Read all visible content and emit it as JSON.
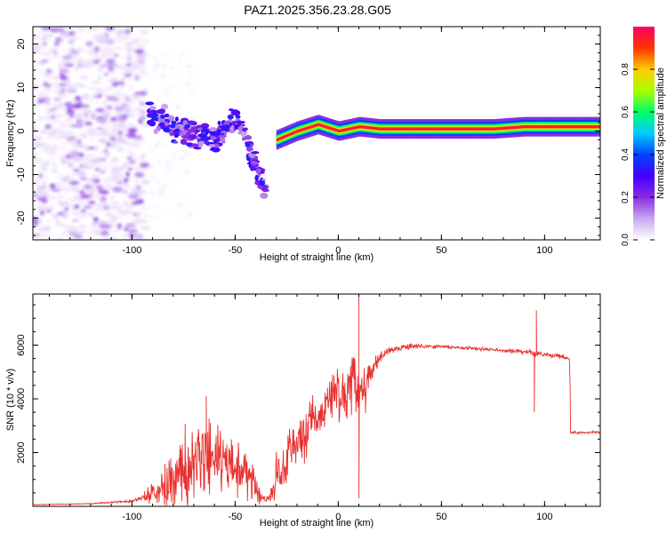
{
  "figure_title": "PAZ1.2025.356.23.28.G05",
  "chart_data": [
    {
      "type": "heatmap",
      "title": "PAZ1.2025.356.23.28.G05",
      "xlabel": "Height of straight line (km)",
      "ylabel": "Frequency (Hz)",
      "xlim": [
        -148,
        127
      ],
      "ylim": [
        -25,
        24
      ],
      "xticks": [
        -100,
        -50,
        0,
        50,
        100
      ],
      "yticks": [
        -20,
        -10,
        0,
        10,
        20
      ],
      "grid": false,
      "colorbar": {
        "label": "Normalized spectral amplitude",
        "range": [
          0,
          1
        ],
        "ticks": [
          0.0,
          0.2,
          0.4,
          0.6,
          0.8
        ],
        "colors": [
          "#ffffff",
          "#c8a8f0",
          "#8a2be2",
          "#4400ff",
          "#0044ff",
          "#00ccff",
          "#00ff66",
          "#aaff00",
          "#ffcc00",
          "#ff3300",
          "#ff0066"
        ]
      },
      "features": [
        {
          "name": "noise scatter",
          "x_range": [
            -148,
            -93
          ],
          "freq_range": [
            -25,
            24
          ],
          "amplitude": 0.05
        },
        {
          "name": "descending track",
          "points": [
            [
              -92,
              4
            ],
            [
              -80,
              1
            ],
            [
              -70,
              -1
            ],
            [
              -60,
              -2
            ],
            [
              -50,
              3
            ],
            [
              -45,
              -1
            ],
            [
              -40,
              -8
            ],
            [
              -35,
              -13
            ]
          ],
          "amplitude": 0.25
        },
        {
          "name": "main carrier",
          "points": [
            [
              -30,
              -2
            ],
            [
              -20,
              0
            ],
            [
              -10,
              1.5
            ],
            [
              0,
              0
            ],
            [
              10,
              1
            ],
            [
              20,
              0.5
            ],
            [
              30,
              0.5
            ],
            [
              50,
              0.5
            ],
            [
              75,
              0.5
            ],
            [
              90,
              1
            ],
            [
              100,
              1
            ],
            [
              127,
              1
            ]
          ],
          "amplitude": 0.95
        }
      ]
    },
    {
      "type": "line",
      "title": "",
      "xlabel": "Height of straight line (km)",
      "ylabel": "SNR (10 * v/v)",
      "xlim": [
        -148,
        127
      ],
      "ylim": [
        0,
        7900
      ],
      "xticks": [
        -100,
        -50,
        0,
        50,
        100
      ],
      "yticks": [
        2000,
        4000,
        6000
      ],
      "grid": false,
      "series": [
        {
          "name": "SNR",
          "color": "#e8312f",
          "x": [
            -148,
            -120,
            -100,
            -95,
            -90,
            -85,
            -80,
            -75,
            -70,
            -65,
            -60,
            -55,
            -50,
            -45,
            -40,
            -37,
            -35,
            -33,
            -30,
            -28,
            -25,
            -20,
            -15,
            -10,
            -5,
            0,
            5,
            8,
            10,
            12,
            15,
            20,
            25,
            30,
            35,
            40,
            50,
            60,
            70,
            80,
            90,
            95,
            100,
            105,
            110,
            112,
            113,
            115,
            120,
            127
          ],
          "y": [
            60,
            100,
            200,
            300,
            500,
            800,
            1100,
            1400,
            1600,
            1800,
            1700,
            1600,
            1500,
            1300,
            700,
            350,
            250,
            300,
            1200,
            1500,
            1900,
            2300,
            2800,
            3300,
            3800,
            3900,
            4200,
            4400,
            4100,
            4200,
            4800,
            5500,
            5800,
            5900,
            5950,
            5950,
            5950,
            5900,
            5850,
            5800,
            5750,
            5700,
            5650,
            5600,
            5550,
            5500,
            2800,
            2800,
            2750,
            2700
          ],
          "amplitude": [
            10,
            20,
            60,
            150,
            500,
            900,
            1500,
            1800,
            1800,
            1700,
            1600,
            1500,
            1500,
            1400,
            900,
            200,
            150,
            300,
            1000,
            1200,
            1300,
            1300,
            1200,
            1200,
            1300,
            1500,
            1400,
            1600,
            2000,
            1400,
            800,
            300,
            200,
            150,
            120,
            100,
            80,
            80,
            80,
            90,
            100,
            150,
            100,
            100,
            100,
            100,
            80,
            60,
            60,
            60
          ],
          "spikes": [
            [
              10,
              7850
            ],
            [
              10,
              300
            ],
            [
              8,
              5500
            ],
            [
              96,
              7300
            ],
            [
              95,
              3500
            ],
            [
              -64,
              4100
            ]
          ]
        }
      ]
    }
  ]
}
